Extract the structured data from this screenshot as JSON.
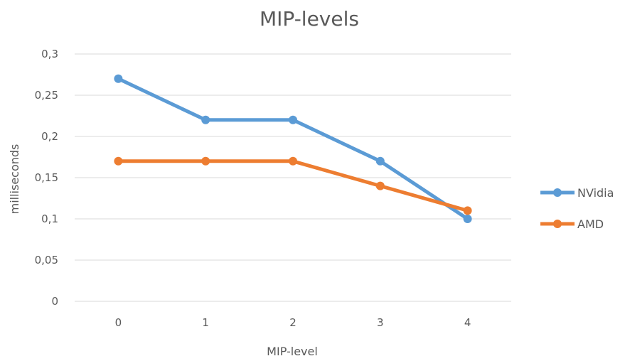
{
  "chart_data": {
    "type": "line",
    "title": "MIP-levels",
    "xlabel": "MIP-level",
    "ylabel": "milliseconds",
    "categories": [
      "0",
      "1",
      "2",
      "3",
      "4"
    ],
    "y_ticks": [
      "0",
      "0,05",
      "0,1",
      "0,15",
      "0,2",
      "0,25",
      "0,3"
    ],
    "ylim": [
      0,
      0.3
    ],
    "grid": true,
    "legend_position": "right",
    "series": [
      {
        "name": "NVidia",
        "color": "#5b9bd5",
        "values": [
          0.27,
          0.22,
          0.22,
          0.17,
          0.1
        ]
      },
      {
        "name": "AMD",
        "color": "#ed7d31",
        "values": [
          0.17,
          0.17,
          0.17,
          0.14,
          0.11
        ]
      }
    ]
  }
}
